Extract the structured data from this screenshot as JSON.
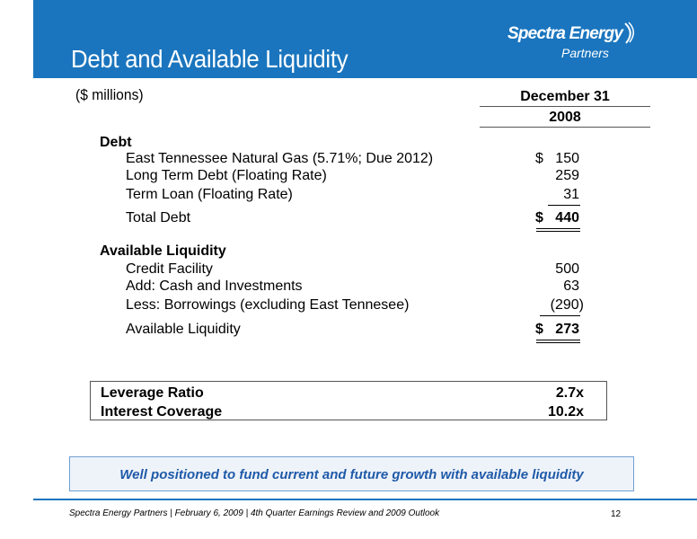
{
  "header": {
    "title": "Debt and Available Liquidity",
    "logo_name": "Spectra Energy",
    "logo_sub": "Partners",
    "color": "#1a75be"
  },
  "table": {
    "units": "($ millions)",
    "column_header": "December 31",
    "column_year": "2008",
    "debt": {
      "heading": "Debt",
      "rows": [
        {
          "label": "East Tennessee Natural Gas (5.71%; Due 2012)",
          "dollar": "$",
          "value": "150"
        },
        {
          "label": "Long Term Debt (Floating Rate)",
          "value": "259"
        },
        {
          "label": "Term Loan (Floating Rate)",
          "value": "31"
        }
      ],
      "total_label": "Total Debt",
      "total_dollar": "$",
      "total_value": "440"
    },
    "liquidity": {
      "heading": "Available Liquidity",
      "rows": [
        {
          "label": "Credit Facility",
          "value": "500"
        },
        {
          "label": "Add: Cash and Investments",
          "value": "63"
        },
        {
          "label": "Less: Borrowings (excluding East Tennesee)",
          "value": "(290)"
        }
      ],
      "total_label": "Available Liquidity",
      "total_dollar": "$",
      "total_value": "273"
    }
  },
  "ratios": [
    {
      "label": "Leverage Ratio",
      "value": "2.7x"
    },
    {
      "label": "Interest Coverage",
      "value": "10.2x"
    }
  ],
  "callout": "Well positioned to fund current and future growth with available liquidity",
  "footer": {
    "text": "Spectra Energy Partners | February 6, 2009 | 4th Quarter Earnings Review and 2009 Outlook",
    "page": "12"
  }
}
